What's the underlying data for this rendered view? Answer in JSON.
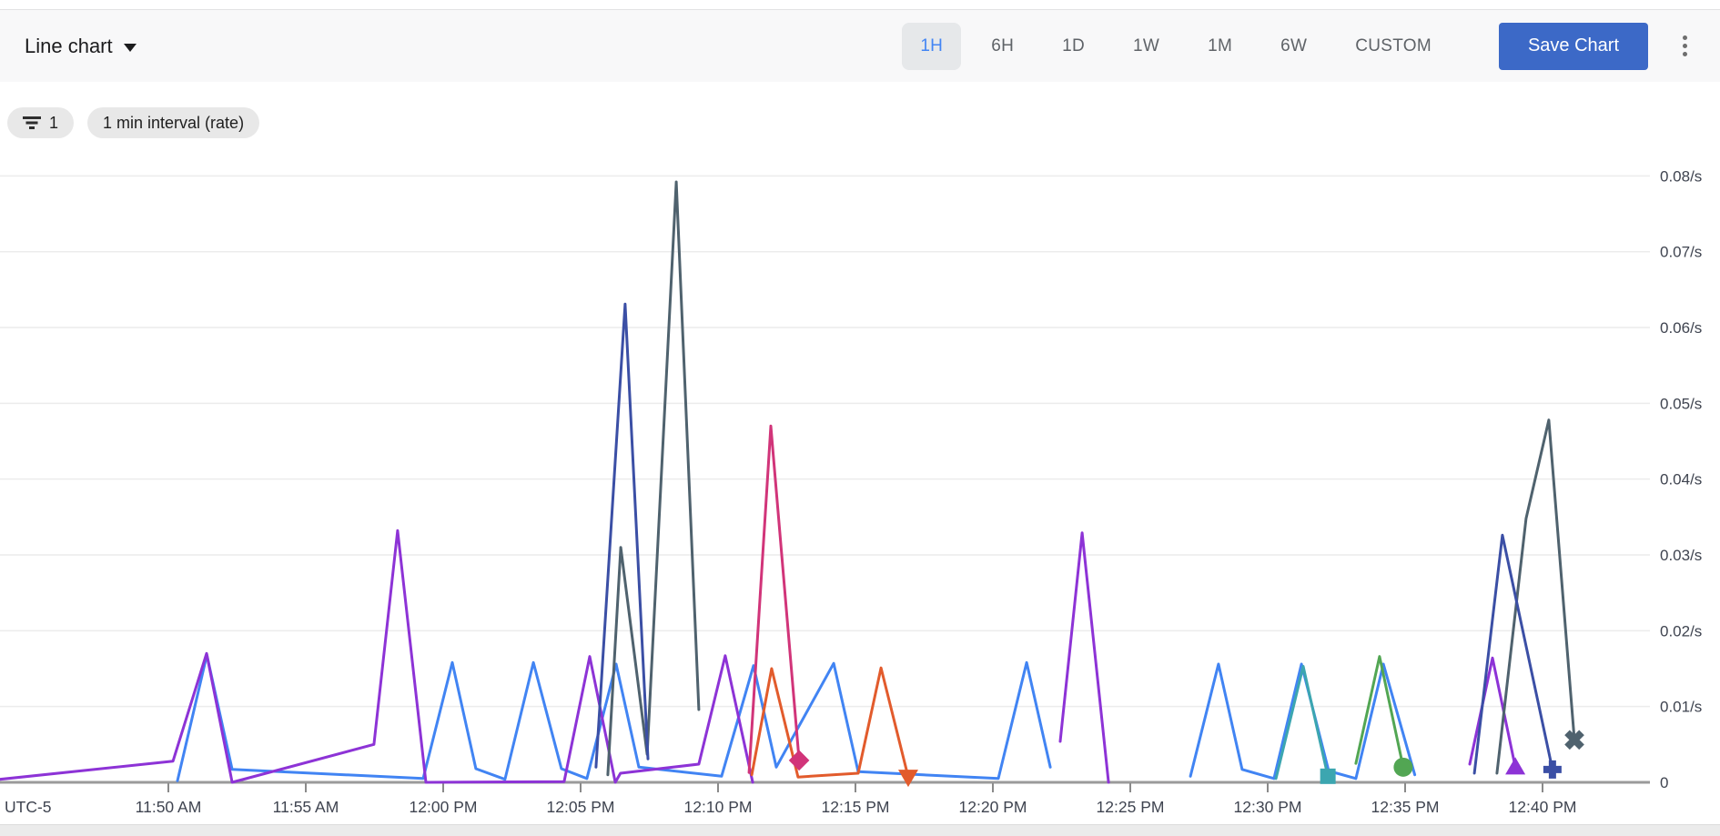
{
  "header": {
    "chart_type_label": "Line chart",
    "ranges": [
      {
        "label": "1H",
        "selected": true
      },
      {
        "label": "6H",
        "selected": false
      },
      {
        "label": "1D",
        "selected": false
      },
      {
        "label": "1W",
        "selected": false
      },
      {
        "label": "1M",
        "selected": false
      },
      {
        "label": "6W",
        "selected": false
      },
      {
        "label": "CUSTOM",
        "selected": false
      }
    ],
    "save_button_label": "Save Chart",
    "more_options_icon": "vertical-dots",
    "accent_color": "#4285f4",
    "save_button_color": "#3c69c7"
  },
  "chips": {
    "filter_icon": "filter-list-icon",
    "filter_count": "1",
    "interval_label": "1 min interval (rate)"
  },
  "chart_data": {
    "type": "line",
    "grid": true,
    "legend_position": "none",
    "x_axis": {
      "timezone_label": "UTC-5",
      "unit": "time",
      "ticks": [
        {
          "t": 5,
          "label": "11:50 AM"
        },
        {
          "t": 10,
          "label": "11:55 AM"
        },
        {
          "t": 15,
          "label": "12:00 PM"
        },
        {
          "t": 20,
          "label": "12:05 PM"
        },
        {
          "t": 25,
          "label": "12:10 PM"
        },
        {
          "t": 30,
          "label": "12:15 PM"
        },
        {
          "t": 35,
          "label": "12:20 PM"
        },
        {
          "t": 40,
          "label": "12:25 PM"
        },
        {
          "t": 45,
          "label": "12:30 PM"
        },
        {
          "t": 50,
          "label": "12:35 PM"
        },
        {
          "t": 55,
          "label": "12:40 PM"
        }
      ],
      "note": "t is minutes after 11:45 AM; visible range approx 11:44 AM to 12:44 PM"
    },
    "y_axis": {
      "unit": "/s",
      "min": 0,
      "max": 0.08,
      "labels": [
        "0",
        "0.01/s",
        "0.02/s",
        "0.03/s",
        "0.04/s",
        "0.05/s",
        "0.06/s",
        "0.07/s",
        "0.08/s"
      ]
    },
    "series": [
      {
        "name": "blue",
        "color": "#4184f3",
        "marker": null,
        "segments": [
          [
            [
              5.33,
              0.0002
            ],
            [
              6.4,
              0.0168
            ],
            [
              7.32,
              0.0017
            ],
            [
              14.27,
              0.0005
            ],
            [
              15.33,
              0.0158
            ],
            [
              16.19,
              0.0018
            ],
            [
              17.25,
              0.0004
            ],
            [
              18.28,
              0.0158
            ],
            [
              19.3,
              0.0018
            ],
            [
              20.23,
              0.0005
            ],
            [
              21.29,
              0.0156
            ],
            [
              22.12,
              0.002
            ],
            [
              25.13,
              0.0008
            ],
            [
              26.29,
              0.0154
            ],
            [
              27.12,
              0.002
            ],
            [
              29.21,
              0.0157
            ],
            [
              30.1,
              0.0014
            ],
            [
              35.2,
              0.0005
            ],
            [
              36.23,
              0.0158
            ],
            [
              37.09,
              0.002
            ]
          ],
          [
            [
              42.19,
              0.0008
            ],
            [
              43.21,
              0.0156
            ],
            [
              44.07,
              0.0017
            ],
            [
              45.23,
              0.0005
            ],
            [
              46.23,
              0.0156
            ],
            [
              47.22,
              0.0015
            ],
            [
              48.21,
              0.0005
            ],
            [
              49.21,
              0.0156
            ],
            [
              50.35,
              0.001
            ]
          ]
        ]
      },
      {
        "name": "purple",
        "color": "#8d33d6",
        "marker": "triangle-up",
        "segments": [
          [
            [
              -1.13,
              0.0004
            ],
            [
              5.17,
              0.0028
            ],
            [
              6.39,
              0.017
            ],
            [
              7.32,
              0.0
            ],
            [
              12.48,
              0.005
            ],
            [
              13.34,
              0.0332
            ],
            [
              14.37,
              0.0
            ],
            [
              19.4,
              0.0001
            ],
            [
              20.33,
              0.0166
            ],
            [
              21.26,
              0.0
            ],
            [
              21.45,
              0.0012
            ],
            [
              24.3,
              0.0024
            ],
            [
              25.26,
              0.0167
            ],
            [
              26.26,
              0.0
            ]
          ],
          [
            [
              37.45,
              0.0054
            ],
            [
              38.25,
              0.0329
            ],
            [
              39.21,
              0.0
            ]
          ],
          [
            [
              52.35,
              0.0024
            ],
            [
              53.18,
              0.0164
            ],
            [
              54.01,
              0.002
            ]
          ]
        ]
      },
      {
        "name": "slate",
        "color": "#4f626e",
        "marker": "x",
        "segments": [
          [
            [
              20.99,
              0.001
            ],
            [
              21.46,
              0.031
            ],
            [
              22.42,
              0.0037
            ],
            [
              23.48,
              0.0792
            ],
            [
              24.3,
              0.0096
            ]
          ],
          [
            [
              53.34,
              0.0012
            ],
            [
              54.4,
              0.0348
            ],
            [
              55.23,
              0.0478
            ],
            [
              56.16,
              0.0056
            ]
          ]
        ]
      },
      {
        "name": "navy",
        "color": "#3b4fa5",
        "marker": "plus",
        "segments": [
          [
            [
              20.56,
              0.002
            ],
            [
              21.62,
              0.0631
            ],
            [
              22.45,
              0.0031
            ]
          ],
          [
            [
              52.52,
              0.0012
            ],
            [
              53.54,
              0.0326
            ],
            [
              54.07,
              0.0236
            ],
            [
              55.36,
              0.0017
            ]
          ]
        ]
      },
      {
        "name": "pink",
        "color": "#d13479",
        "marker": "diamond",
        "segments": [
          [
            [
              26.13,
              0.0013
            ],
            [
              26.92,
              0.047
            ],
            [
              27.95,
              0.0029
            ]
          ]
        ]
      },
      {
        "name": "orange",
        "color": "#e25b2c",
        "marker": "triangle-down",
        "segments": [
          [
            [
              26.23,
              0.001
            ],
            [
              26.95,
              0.015
            ],
            [
              27.91,
              0.0007
            ],
            [
              30.1,
              0.0012
            ],
            [
              30.93,
              0.0151
            ],
            [
              31.92,
              0.0007
            ]
          ]
        ]
      },
      {
        "name": "teal",
        "color": "#3ca6b0",
        "marker": "square",
        "segments": [
          [
            [
              45.3,
              0.0005
            ],
            [
              46.29,
              0.0153
            ],
            [
              47.19,
              0.0008
            ]
          ]
        ]
      },
      {
        "name": "green",
        "color": "#52a653",
        "marker": "circle",
        "segments": [
          [
            [
              48.21,
              0.0025
            ],
            [
              49.07,
              0.0166
            ],
            [
              49.93,
              0.002
            ]
          ]
        ]
      }
    ]
  }
}
